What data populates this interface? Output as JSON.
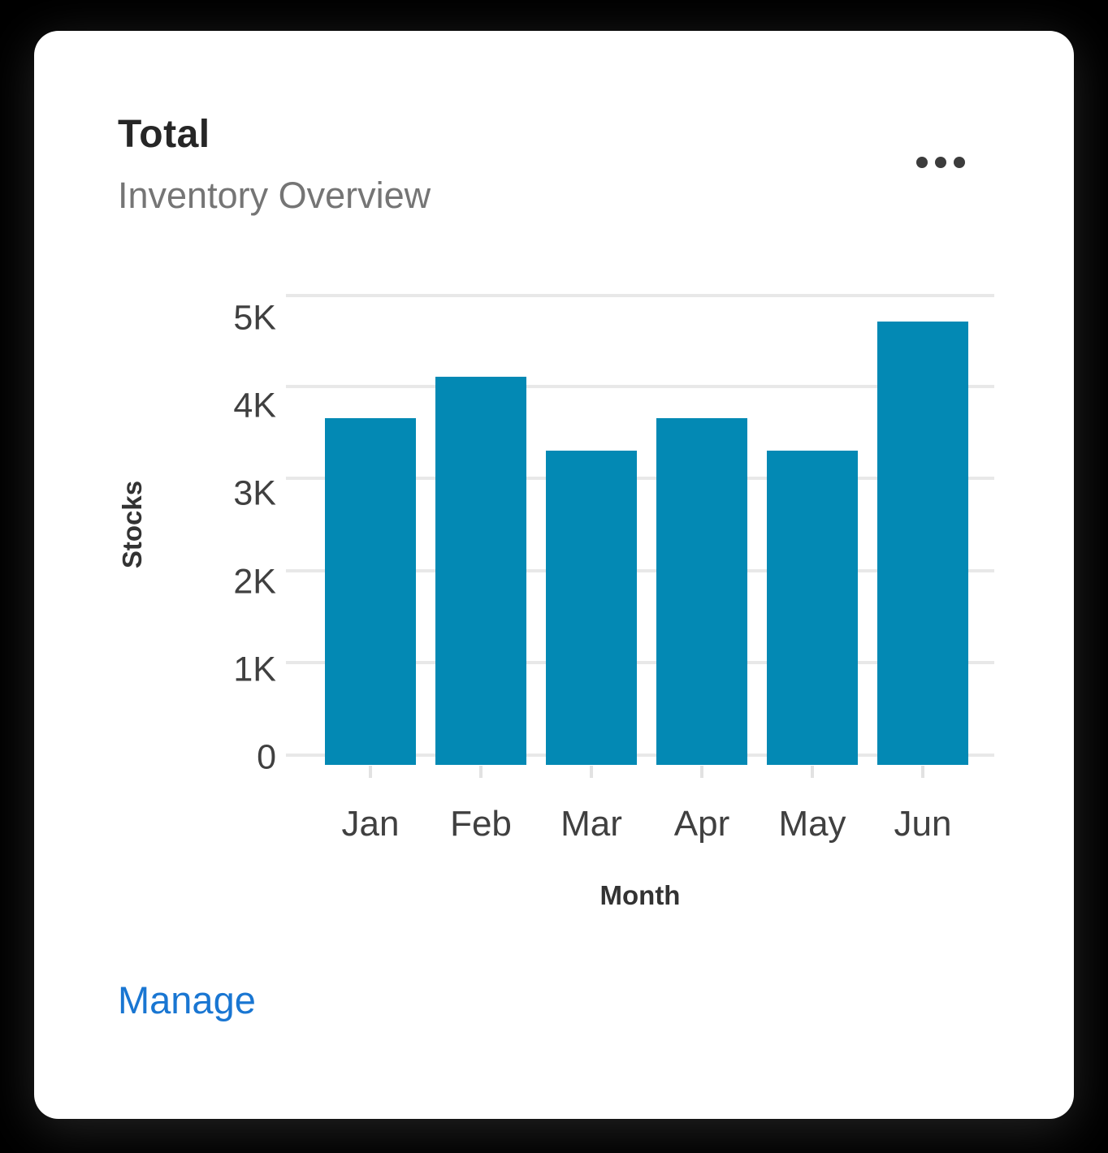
{
  "card": {
    "title": "Total",
    "subtitle": "Inventory Overview",
    "menu_icon": "ellipsis-horizontal-icon",
    "action_label": "Manage"
  },
  "chart_data": {
    "type": "bar",
    "title": "",
    "categories": [
      "Jan",
      "Feb",
      "Mar",
      "Apr",
      "May",
      "Jun"
    ],
    "values": [
      3650,
      4100,
      3300,
      3650,
      3300,
      4700
    ],
    "xlabel": "Month",
    "ylabel": "Stocks",
    "ylim": [
      0,
      5000
    ],
    "yticks": [
      {
        "value": 5000,
        "label": "5K"
      },
      {
        "value": 4000,
        "label": "4K"
      },
      {
        "value": 3000,
        "label": "3K"
      },
      {
        "value": 2000,
        "label": "2K"
      },
      {
        "value": 1000,
        "label": "1K"
      },
      {
        "value": 0,
        "label": "0"
      }
    ],
    "grid": true,
    "legend": false,
    "bar_color": "#0389b4"
  },
  "colors": {
    "bar": "#0389b4",
    "gridline": "#e8e8e8",
    "tick_label": "#404040",
    "axis_title": "#333333",
    "card_title": "#262626",
    "card_subtitle": "#757575",
    "link": "#1976d2",
    "card_background": "#ffffff",
    "page_background": "#000000"
  }
}
